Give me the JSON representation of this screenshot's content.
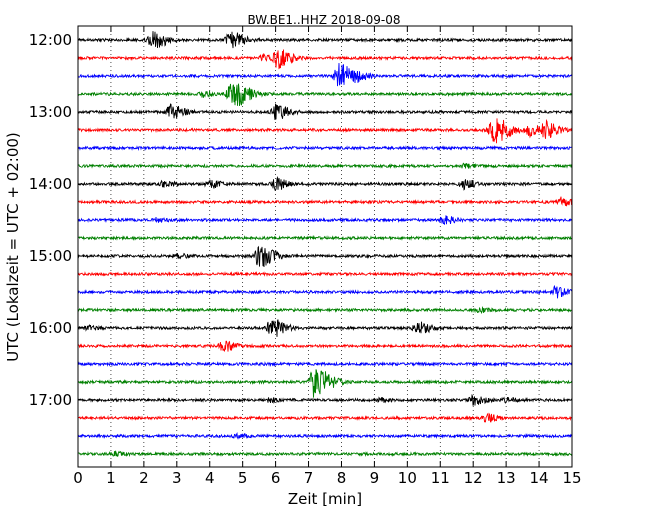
{
  "chart_data": {
    "type": "line",
    "title": "BW.BE1..HHZ 2018-09-08",
    "xlabel": "Zeit  [min]",
    "ylabel": "UTC (Lokalzeit = UTC + 02:00)",
    "xlim": [
      0,
      15
    ],
    "x_ticks": [
      "0",
      "1",
      "2",
      "3",
      "4",
      "5",
      "6",
      "7",
      "8",
      "9",
      "10",
      "11",
      "12",
      "13",
      "14",
      "15"
    ],
    "y_ticks": [
      "12:00",
      "13:00",
      "14:00",
      "15:00",
      "16:00",
      "17:00"
    ],
    "trace_interval_min": 15,
    "grid": "x-dotted",
    "colors": [
      "#000000",
      "#ff0000",
      "#0000ff",
      "#008000"
    ],
    "series": [
      {
        "start": "12:00",
        "events": [
          [
            2.25,
            1.0
          ],
          [
            4.6,
            0.9
          ]
        ]
      },
      {
        "start": "12:15",
        "events": [
          [
            6.05,
            1.0
          ],
          [
            5.6,
            0.3
          ]
        ]
      },
      {
        "start": "12:30",
        "events": [
          [
            7.9,
            1.3
          ],
          [
            8.5,
            0.3
          ]
        ]
      },
      {
        "start": "12:45",
        "events": [
          [
            4.65,
            1.5
          ],
          [
            3.8,
            0.3
          ]
        ]
      },
      {
        "start": "13:00",
        "events": [
          [
            2.8,
            0.8
          ],
          [
            6.0,
            0.8
          ]
        ]
      },
      {
        "start": "13:15",
        "events": [
          [
            12.6,
            1.4
          ],
          [
            13.7,
            0.6
          ],
          [
            14.2,
            0.8
          ]
        ]
      },
      {
        "start": "13:30",
        "events": []
      },
      {
        "start": "13:45",
        "events": [
          [
            11.7,
            0.2
          ]
        ]
      },
      {
        "start": "14:00",
        "events": [
          [
            6.0,
            0.6
          ],
          [
            11.7,
            0.5
          ],
          [
            4.0,
            0.4
          ],
          [
            2.6,
            0.3
          ]
        ]
      },
      {
        "start": "14:15",
        "events": [
          [
            14.6,
            0.5
          ]
        ]
      },
      {
        "start": "14:30",
        "events": [
          [
            11.1,
            0.4
          ],
          [
            2.4,
            0.2
          ]
        ]
      },
      {
        "start": "14:45",
        "events": []
      },
      {
        "start": "15:00",
        "events": [
          [
            5.5,
            1.2
          ],
          [
            3.0,
            0.2
          ]
        ]
      },
      {
        "start": "15:15",
        "events": []
      },
      {
        "start": "15:30",
        "events": [
          [
            14.5,
            0.6
          ]
        ]
      },
      {
        "start": "15:45",
        "events": [
          [
            12.2,
            0.2
          ]
        ]
      },
      {
        "start": "16:00",
        "events": [
          [
            5.85,
            1.0
          ],
          [
            10.3,
            0.7
          ],
          [
            0.3,
            0.2
          ]
        ]
      },
      {
        "start": "16:15",
        "events": [
          [
            4.4,
            0.6
          ]
        ]
      },
      {
        "start": "16:30",
        "events": []
      },
      {
        "start": "16:45",
        "events": [
          [
            7.15,
            1.6
          ]
        ]
      },
      {
        "start": "17:00",
        "events": [
          [
            12.0,
            0.5
          ],
          [
            5.8,
            0.2
          ],
          [
            9.2,
            0.2
          ],
          [
            13.0,
            0.2
          ]
        ]
      },
      {
        "start": "17:15",
        "events": [
          [
            12.4,
            0.4
          ]
        ]
      },
      {
        "start": "17:30",
        "events": [
          [
            4.8,
            0.2
          ]
        ]
      },
      {
        "start": "17:45",
        "events": [
          [
            1.1,
            0.2
          ]
        ]
      }
    ]
  }
}
